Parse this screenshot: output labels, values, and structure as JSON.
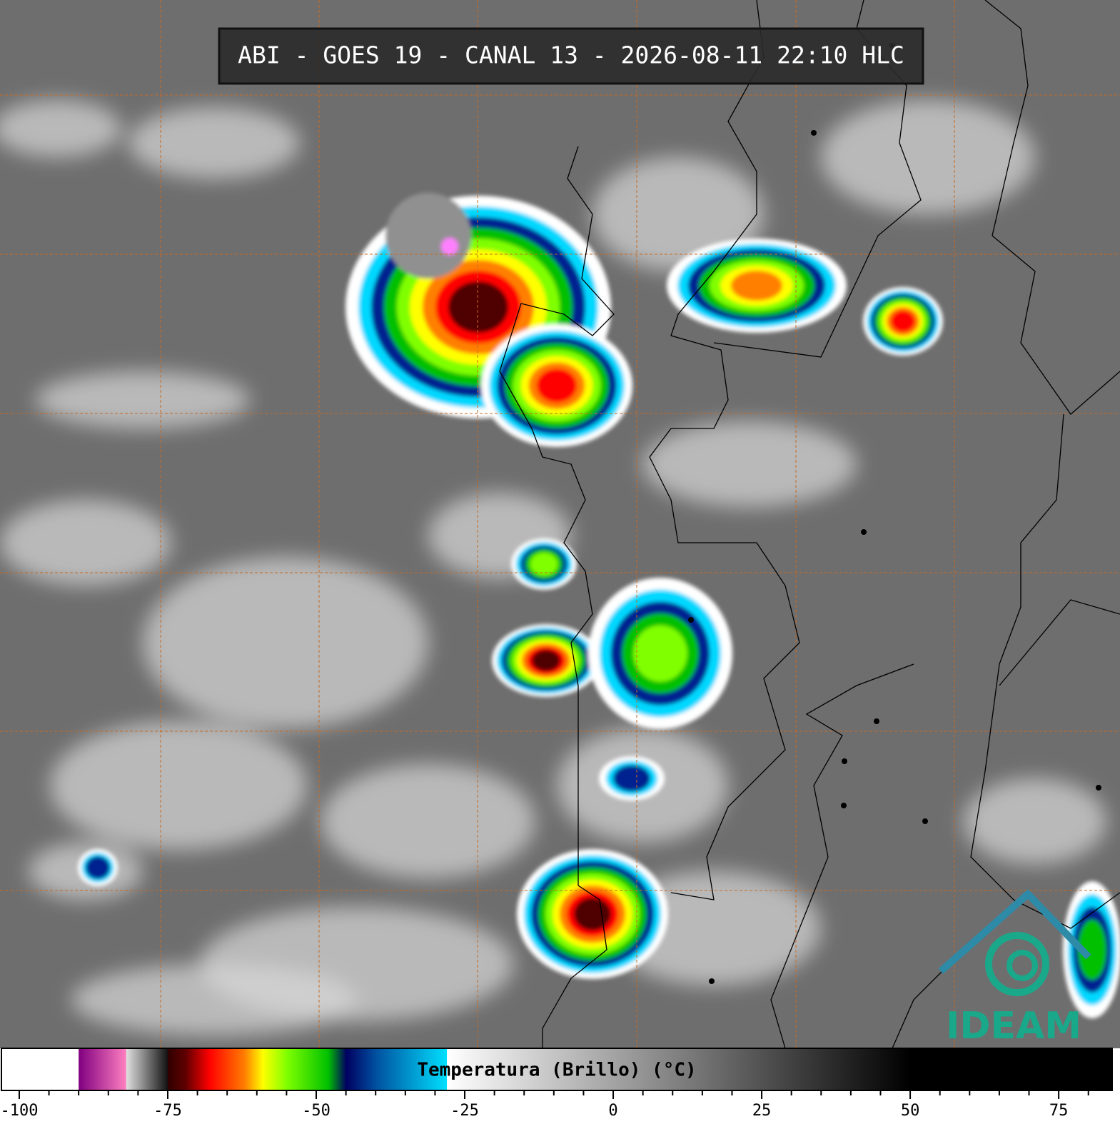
{
  "title": "ABI - GOES 19 - CANAL 13 - 2026-08-11 22:10 HLC",
  "logo": "IDEAM",
  "colorbar": {
    "label": "Temperatura (Brillo) (°C)",
    "xlim": [
      -103,
      84
    ],
    "xticks": [
      -100,
      -75,
      -50,
      -25,
      0,
      25,
      50,
      75
    ],
    "minor_xticks": [
      -95,
      -90,
      -85,
      -80,
      -70,
      -65,
      -60,
      -55,
      -45,
      -40,
      -35,
      -30,
      -20,
      -15,
      -10,
      -5,
      5,
      10,
      15,
      20,
      30,
      35,
      40,
      45,
      55,
      60,
      65,
      70,
      80
    ],
    "colormap": [
      {
        "value": -103,
        "color": "#ffffff"
      },
      {
        "value": -90,
        "color": "#ffffff"
      },
      {
        "value": -90,
        "color": "#800080"
      },
      {
        "value": -82,
        "color": "#ff80c0"
      },
      {
        "value": -82,
        "color": "#e0e0e0"
      },
      {
        "value": -75,
        "color": "#101010"
      },
      {
        "value": -75,
        "color": "#300000"
      },
      {
        "value": -72,
        "color": "#600000"
      },
      {
        "value": -68,
        "color": "#ff0000"
      },
      {
        "value": -62,
        "color": "#ff8000"
      },
      {
        "value": -59,
        "color": "#ffff00"
      },
      {
        "value": -55,
        "color": "#80ff00"
      },
      {
        "value": -48,
        "color": "#00c000"
      },
      {
        "value": -45,
        "color": "#000060"
      },
      {
        "value": -40,
        "color": "#0050a0"
      },
      {
        "value": -28,
        "color": "#00e0ff"
      },
      {
        "value": -28,
        "color": "#ffffff"
      },
      {
        "value": 50,
        "color": "#000000"
      },
      {
        "value": 84,
        "color": "#000000"
      }
    ]
  }
}
